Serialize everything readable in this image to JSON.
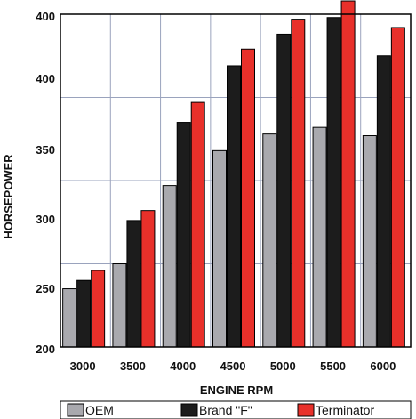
{
  "chart_data": {
    "type": "bar",
    "xlabel": "ENGINE RPM",
    "ylabel": "HORSEPOWER",
    "categories": [
      "3000",
      "3500",
      "4000",
      "4500",
      "5000",
      "5500",
      "6000"
    ],
    "ylim": [
      200,
      400
    ],
    "yticks": [
      "200",
      "250",
      "300",
      "350",
      "400",
      "400"
    ],
    "ytick_values": [
      200,
      250,
      300,
      350,
      400,
      400
    ],
    "grid": true,
    "legend_position": "bottom",
    "series": [
      {
        "name": "OEM",
        "color": "#a9a9ae",
        "values": [
          235,
          250,
          297,
          318,
          328,
          332,
          327
        ]
      },
      {
        "name": "Brand \"F\"",
        "color": "#1c1c1c",
        "values": [
          240,
          276,
          335,
          369,
          388,
          398,
          375
        ]
      },
      {
        "name": "Terminator",
        "color": "#e8302a",
        "values": [
          246,
          282,
          347,
          379,
          397,
          408,
          392
        ]
      }
    ]
  }
}
